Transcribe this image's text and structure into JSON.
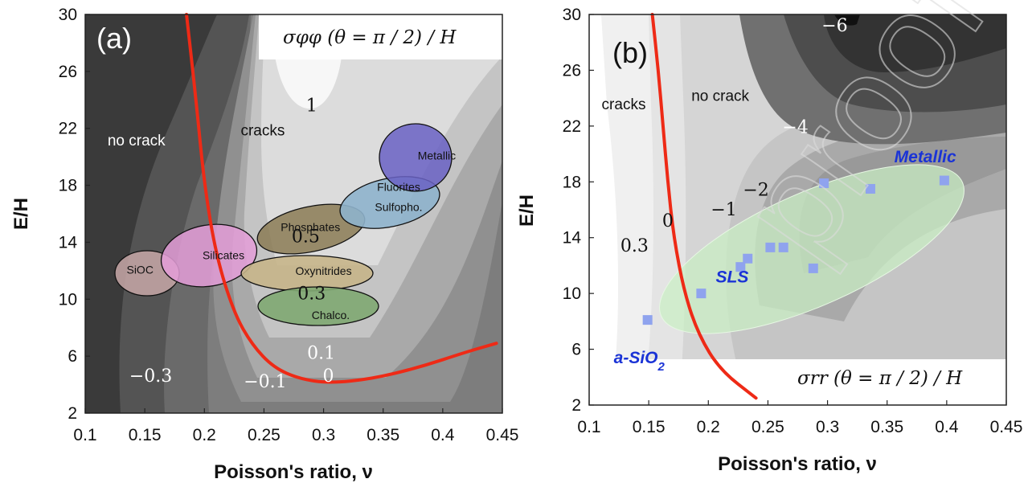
{
  "chart_data": [
    {
      "type": "contour",
      "panel_label": "(a)",
      "title": "σφφ (θ = π / 2) / H",
      "xlabel": "Poisson's ratio, ν",
      "ylabel": "E/H",
      "xlim": [
        0.1,
        0.45
      ],
      "ylim": [
        2,
        30
      ],
      "xticks": [
        "0.1",
        "0.15",
        "0.2",
        "0.25",
        "0.3",
        "0.35",
        "0.4",
        "0.45"
      ],
      "yticks": [
        "2",
        "6",
        "10",
        "14",
        "18",
        "22",
        "26",
        "30"
      ],
      "contour_labels": [
        {
          "text": "1",
          "x": 0.29,
          "y": 23.2
        },
        {
          "text": "0.5",
          "x": 0.285,
          "y": 14.0
        },
        {
          "text": "0.3",
          "x": 0.29,
          "y": 10.0
        },
        {
          "text": "0.1",
          "x": 0.298,
          "y": 5.8
        },
        {
          "text": "0",
          "x": 0.304,
          "y": 4.2
        },
        {
          "text": "−0.1",
          "x": 0.251,
          "y": 3.8
        },
        {
          "text": "−0.3",
          "x": 0.155,
          "y": 4.2
        }
      ],
      "region_labels": [
        {
          "text": "no crack",
          "x": 0.143,
          "y": 20.8
        },
        {
          "text": "cracks",
          "x": 0.249,
          "y": 21.5
        }
      ],
      "critical_line": [
        [
          0.185,
          30
        ],
        [
          0.193,
          24
        ],
        [
          0.2,
          18
        ],
        [
          0.21,
          13
        ],
        [
          0.225,
          9
        ],
        [
          0.24,
          6.8
        ],
        [
          0.258,
          5.2
        ],
        [
          0.28,
          4.4
        ],
        [
          0.305,
          4.1
        ],
        [
          0.34,
          4.4
        ],
        [
          0.38,
          5.2
        ],
        [
          0.42,
          6.3
        ],
        [
          0.445,
          6.9
        ]
      ],
      "material_families": [
        {
          "name": "SiOC",
          "x": 0.146,
          "y": 11.8
        },
        {
          "name": "Silicates",
          "x": 0.216,
          "y": 12.8
        },
        {
          "name": "Phosphates",
          "x": 0.289,
          "y": 14.8
        },
        {
          "name": "Oxynitrides",
          "x": 0.3,
          "y": 11.7
        },
        {
          "name": "Chalco.",
          "x": 0.306,
          "y": 8.6
        },
        {
          "name": "Fluorites",
          "x": 0.363,
          "y": 17.6
        },
        {
          "name": "Sulfopho.",
          "x": 0.363,
          "y": 16.2
        },
        {
          "name": "Metallic",
          "x": 0.395,
          "y": 19.8
        }
      ]
    },
    {
      "type": "contour",
      "panel_label": "(b)",
      "title": "σrr (θ = π / 2) / H",
      "xlabel": "Poisson's ratio, ν",
      "ylabel": "E/H",
      "xlim": [
        0.1,
        0.45
      ],
      "ylim": [
        2,
        30
      ],
      "xticks": [
        "0.1",
        "0.15",
        "0.2",
        "0.25",
        "0.3",
        "0.35",
        "0.4",
        "0.45"
      ],
      "yticks": [
        "2",
        "6",
        "10",
        "14",
        "18",
        "22",
        "26",
        "30"
      ],
      "contour_labels": [
        {
          "text": "−6",
          "x": 0.306,
          "y": 28.8
        },
        {
          "text": "−4",
          "x": 0.273,
          "y": 21.5
        },
        {
          "text": "−2",
          "x": 0.24,
          "y": 17.0
        },
        {
          "text": "−1",
          "x": 0.213,
          "y": 15.6
        },
        {
          "text": "0",
          "x": 0.166,
          "y": 14.8
        },
        {
          "text": "0.3",
          "x": 0.138,
          "y": 13.0
        }
      ],
      "region_labels": [
        {
          "text": "cracks",
          "x": 0.129,
          "y": 23.2
        },
        {
          "text": "no crack",
          "x": 0.21,
          "y": 23.8
        }
      ],
      "critical_line": [
        [
          0.153,
          30
        ],
        [
          0.158,
          26
        ],
        [
          0.162,
          22
        ],
        [
          0.166,
          18
        ],
        [
          0.171,
          14
        ],
        [
          0.18,
          10
        ],
        [
          0.192,
          7
        ],
        [
          0.21,
          4.5
        ],
        [
          0.24,
          2.5
        ]
      ],
      "series": [
        {
          "name": "SLS",
          "points": [
            [
              0.149,
              8.1
            ],
            [
              0.194,
              10.0
            ],
            [
              0.227,
              11.9
            ],
            [
              0.233,
              12.5
            ],
            [
              0.252,
              13.3
            ],
            [
              0.263,
              13.3
            ],
            [
              0.288,
              11.8
            ],
            [
              0.297,
              17.9
            ],
            [
              0.336,
              17.5
            ],
            [
              0.398,
              18.1
            ]
          ]
        }
      ],
      "material_labels": [
        {
          "text": "a-SiO",
          "sub": "2",
          "x": 0.142,
          "y": 5.0
        },
        {
          "text": "SLS",
          "x": 0.22,
          "y": 10.8
        },
        {
          "text": "Metallic",
          "x": 0.382,
          "y": 19.4
        }
      ]
    }
  ],
  "colors": {
    "critical_line": "#ee2a16",
    "sls_points": "#8fa3ee",
    "material_label": "#1a33d6",
    "green_band": "#c9efc4"
  }
}
